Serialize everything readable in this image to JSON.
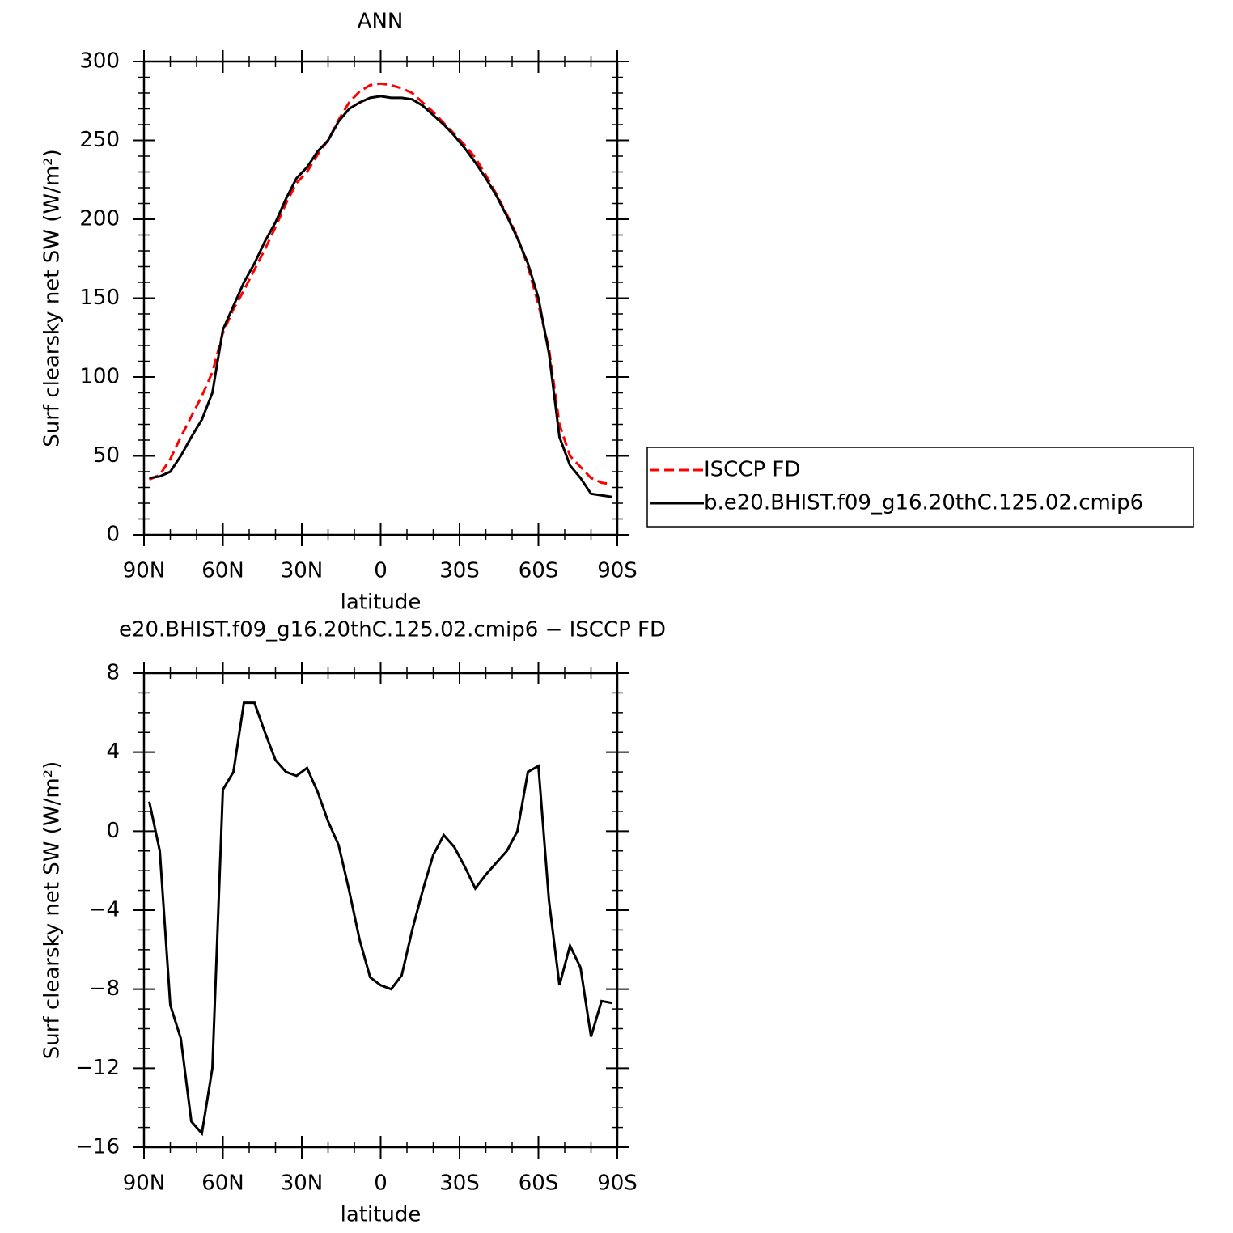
{
  "chart_data": [
    {
      "type": "line",
      "title": "ANN",
      "xlabel": "latitude",
      "ylabel": "Surf clearsky net SW (W/m²)",
      "x": [
        88,
        84,
        80,
        76,
        72,
        68,
        64,
        60,
        56,
        52,
        48,
        44,
        40,
        36,
        32,
        28,
        24,
        20,
        16,
        12,
        8,
        4,
        0,
        -4,
        -8,
        -12,
        -16,
        -20,
        -24,
        -28,
        -32,
        -36,
        -40,
        -44,
        -48,
        -52,
        -56,
        -60,
        -64,
        -68,
        -72,
        -76,
        -80,
        -84,
        -88
      ],
      "series": [
        {
          "name": "ISCCP FD",
          "color": "#ff0000",
          "line_style": "dashed",
          "values": [
            35,
            38,
            48,
            62,
            75,
            88,
            103,
            128,
            143,
            155,
            168,
            181,
            195,
            210,
            223,
            230,
            241,
            250,
            263,
            274,
            281,
            285,
            286,
            285,
            283,
            280,
            274,
            268,
            261,
            254,
            247,
            239,
            228,
            216,
            203,
            189,
            170,
            146,
            118,
            70,
            50,
            43,
            36,
            33,
            32
          ]
        },
        {
          "name": "b.e20.BHIST.f09_g16.20thC.125.02.cmip6",
          "color": "#000000",
          "line_style": "solid",
          "values": [
            36,
            37,
            40,
            50,
            62,
            73,
            90,
            130,
            145,
            160,
            172,
            186,
            198,
            213,
            226,
            233,
            243,
            250,
            262,
            270,
            274,
            277,
            278,
            277,
            277,
            276,
            272,
            266,
            260,
            253,
            245,
            236,
            226,
            215,
            202,
            188,
            172,
            150,
            115,
            62,
            44,
            36,
            26,
            25,
            24
          ]
        }
      ],
      "xlim": [
        90,
        -90
      ],
      "xticks": [
        {
          "value": 90,
          "label": "90N"
        },
        {
          "value": 60,
          "label": "60N"
        },
        {
          "value": 30,
          "label": "30N"
        },
        0,
        {
          "value": -30,
          "label": "30S"
        },
        {
          "value": -60,
          "label": "60S"
        },
        {
          "value": -90,
          "label": "90S"
        }
      ],
      "ylim": [
        0,
        300
      ],
      "yticks": [
        0,
        50,
        100,
        150,
        200,
        250,
        300
      ],
      "legend": "right"
    },
    {
      "type": "line",
      "title": "e20.BHIST.f09_g16.20thC.125.02.cmip6 − ISCCP FD",
      "xlabel": "latitude",
      "ylabel": "Surf clearsky net SW (W/m²)",
      "x": [
        88,
        84,
        80,
        76,
        72,
        68,
        64,
        60,
        56,
        52,
        48,
        44,
        40,
        36,
        32,
        28,
        24,
        20,
        16,
        12,
        8,
        4,
        0,
        -4,
        -8,
        -12,
        -16,
        -20,
        -24,
        -28,
        -32,
        -36,
        -40,
        -44,
        -48,
        -52,
        -56,
        -60,
        -64,
        -68,
        -72,
        -76,
        -80,
        -84,
        -88
      ],
      "series": [
        {
          "color": "#000000",
          "line_style": "solid",
          "values": [
            1.5,
            -1,
            -8.8,
            -10.5,
            -14.7,
            -15.3,
            -12,
            2.1,
            3,
            6.5,
            6.5,
            5,
            3.6,
            3,
            2.8,
            3.2,
            2,
            0.5,
            -0.7,
            -3,
            -5.5,
            -7.4,
            -7.8,
            -8,
            -7.3,
            -5,
            -3,
            -1.2,
            -0.2,
            -0.8,
            -1.8,
            -2.9,
            -2.2,
            -1.6,
            -1,
            0,
            3,
            3.3,
            -3.5,
            -7.8,
            -5.8,
            -6.9,
            -10.4,
            -8.6,
            -8.7
          ]
        }
      ],
      "xlim": [
        90,
        -90
      ],
      "xticks": [
        {
          "value": 90,
          "label": "90N"
        },
        {
          "value": 60,
          "label": "60N"
        },
        {
          "value": 30,
          "label": "30N"
        },
        0,
        {
          "value": -30,
          "label": "30S"
        },
        {
          "value": -60,
          "label": "60S"
        },
        {
          "value": -90,
          "label": "90S"
        }
      ],
      "ylim": [
        -16,
        8
      ],
      "yticks": [
        {
          "value": -16,
          "label": "−16"
        },
        {
          "value": -12,
          "label": "−12"
        },
        {
          "value": -8,
          "label": "−8"
        },
        {
          "value": -4,
          "label": "−4"
        },
        0,
        4,
        8
      ]
    }
  ]
}
